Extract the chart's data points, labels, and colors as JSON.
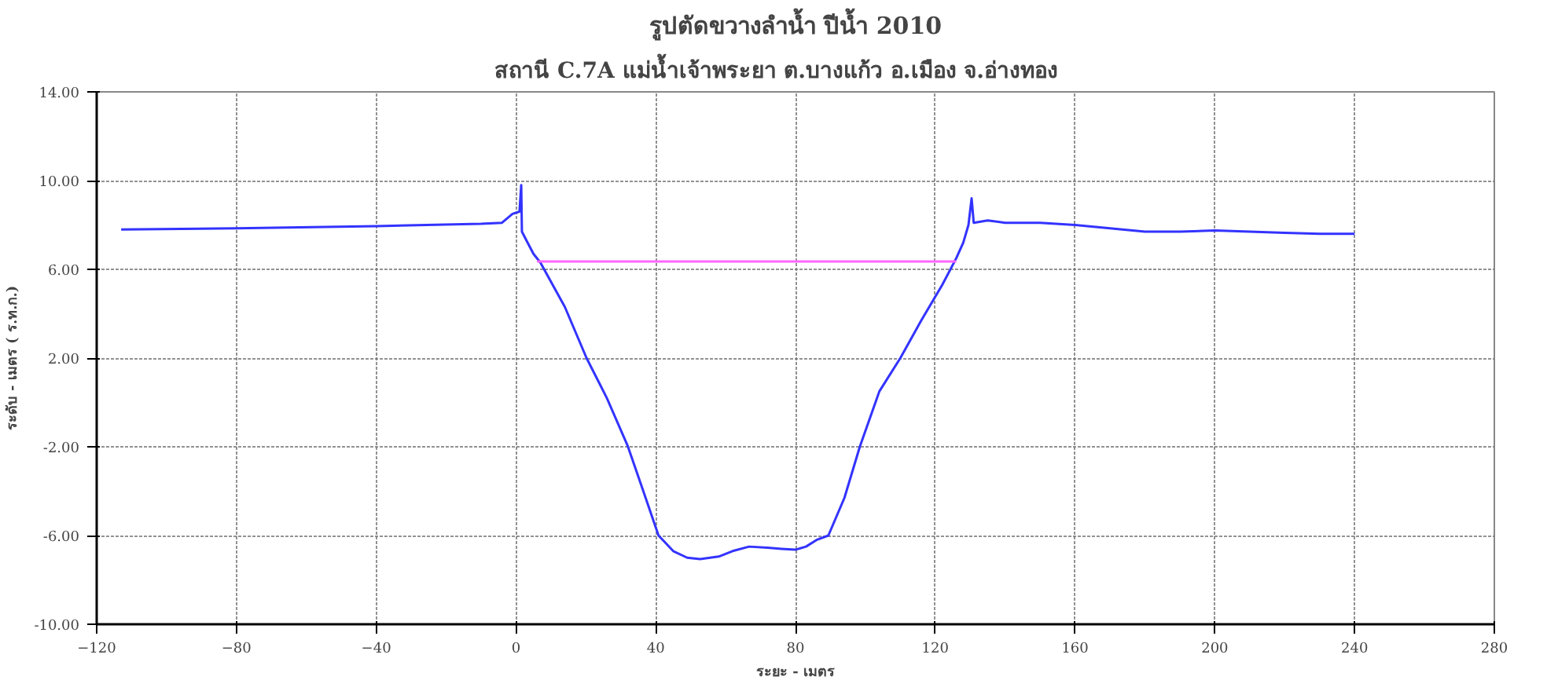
{
  "chart_data": {
    "type": "line",
    "title": "รูปตัดขวางลำน้ำ ปีน้ำ 2010",
    "subtitle": "สถานี C.7A  แม่น้ำเจ้าพระยา  ต.บางแก้ว   อ.เมือง  จ.อ่างทอง",
    "xlabel": "ระยะ - เมตร",
    "ylabel": "ระดับ - เมตร ( ร.ท.ก.)",
    "xlim": [
      -120,
      280
    ],
    "xticks": [
      -120,
      -80,
      -40,
      0,
      40,
      80,
      120,
      160,
      200,
      240,
      280
    ],
    "ylim": [
      -10,
      14
    ],
    "yticks": [
      {
        "value": -10,
        "label": "-10.00"
      },
      {
        "value": -6,
        "label": "-6.00"
      },
      {
        "value": -2,
        "label": "-2.00"
      },
      {
        "value": 2,
        "label": "2.00"
      },
      {
        "value": 6,
        "label": "6.00"
      },
      {
        "value": 10,
        "label": "10.00"
      },
      {
        "value": 14,
        "label": "14.00"
      }
    ],
    "grid": true,
    "line_style": "solid",
    "marker": "none",
    "series": [
      {
        "color": "#3333ff",
        "x": [
          -113,
          -80,
          -40,
          -10,
          -4,
          -1,
          1,
          1.5,
          1.7,
          3,
          5,
          7,
          14,
          20.2,
          26,
          32,
          36,
          40.8,
          45,
          49,
          52.7,
          58,
          62,
          66.7,
          72,
          76,
          80,
          83,
          86,
          89.4,
          94,
          98.4,
          104,
          110,
          116,
          122,
          126,
          128,
          129.5,
          130.4,
          131,
          135,
          140,
          150,
          160,
          170,
          180,
          190,
          200,
          210,
          220,
          230,
          240
        ],
        "values": [
          7.8,
          7.85,
          7.95,
          8.05,
          8.1,
          8.5,
          8.6,
          9.8,
          7.7,
          7.3,
          6.7,
          6.3,
          4.3,
          2.0,
          0.2,
          -1.97,
          -3.8,
          -6.0,
          -6.7,
          -7.0,
          -7.06,
          -6.95,
          -6.7,
          -6.5,
          -6.55,
          -6.6,
          -6.64,
          -6.5,
          -6.2,
          -6.0,
          -4.3,
          -2.0,
          0.5,
          2.0,
          3.7,
          5.3,
          6.5,
          7.2,
          8.0,
          9.2,
          8.1,
          8.2,
          8.1,
          8.1,
          8.0,
          7.85,
          7.7,
          7.7,
          7.75,
          7.7,
          7.65,
          7.6,
          7.6
        ]
      },
      {
        "color": "#ff66ff",
        "x": [
          6,
          126
        ],
        "values": [
          6.35,
          6.35
        ]
      }
    ]
  }
}
